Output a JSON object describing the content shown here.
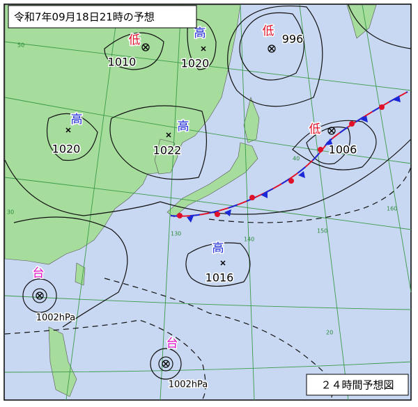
{
  "header": {
    "title": "令和7年09月18日21時の予想"
  },
  "footer": {
    "label": "２４時間予想図"
  },
  "systems": [
    {
      "kind": "低",
      "pressure": 1010
    },
    {
      "kind": "高",
      "pressure": 1020
    },
    {
      "kind": "低",
      "pressure": 996
    },
    {
      "kind": "高",
      "pressure": 1020
    },
    {
      "kind": "高",
      "pressure": 1022
    },
    {
      "kind": "低",
      "pressure": 1006
    },
    {
      "kind": "高",
      "pressure": 1016
    },
    {
      "kind": "台",
      "pressure": "1002hPa"
    },
    {
      "kind": "台",
      "pressure": "1002hPa"
    }
  ],
  "graticule_labels": [
    "50",
    "40",
    "30",
    "20",
    "130",
    "140",
    "150",
    "160"
  ]
}
